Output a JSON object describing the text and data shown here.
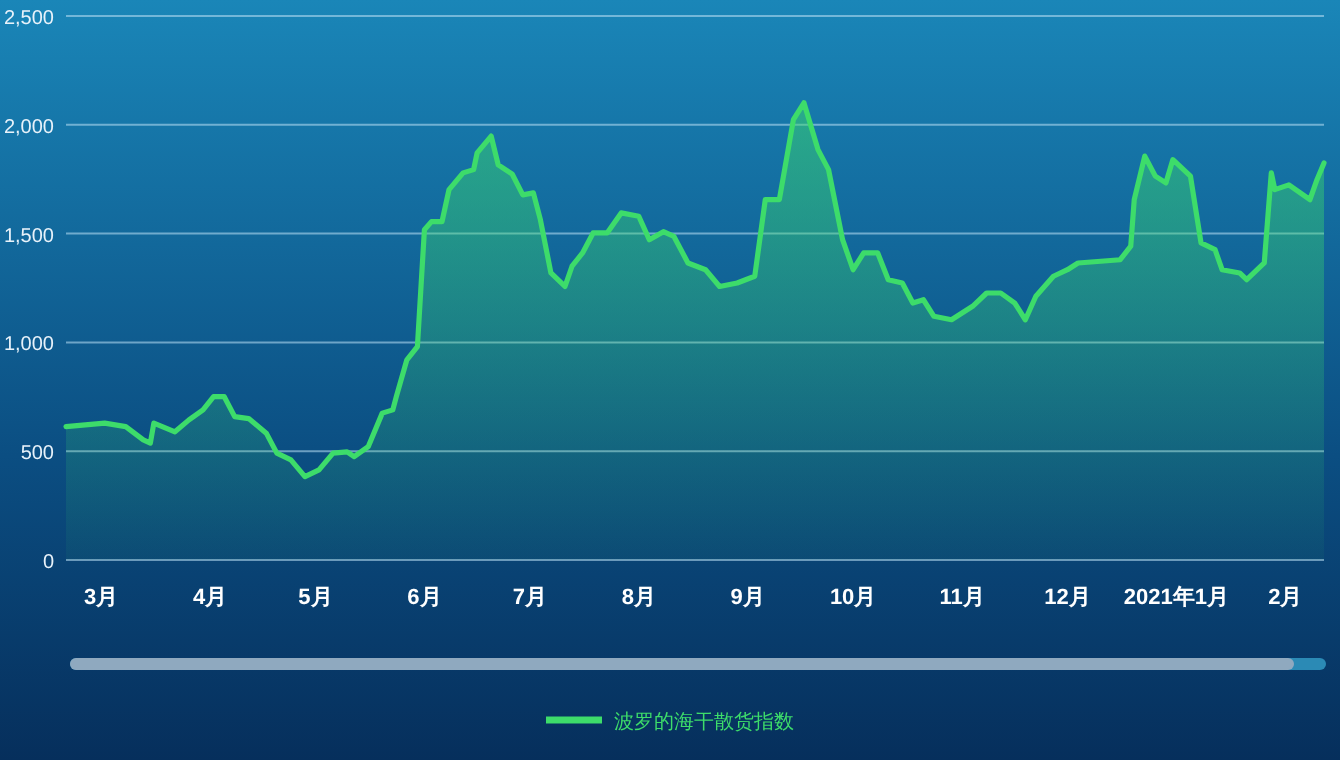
{
  "chart_data": {
    "type": "area",
    "ylim": [
      0,
      2500
    ],
    "yticks": [
      0,
      {
        "value": 500,
        "label": "500"
      },
      {
        "value": 1000,
        "label": "1,000"
      },
      {
        "value": 1500,
        "label": "1,500"
      },
      {
        "value": 2000,
        "label": "2,000"
      },
      {
        "value": 2500,
        "label": "2,500"
      }
    ],
    "xlim": [
      "2020-02-20",
      "2021-02-12"
    ],
    "xticks": [
      {
        "value": "2020-03-01",
        "label": "3月"
      },
      {
        "value": "2020-04-01",
        "label": "4月"
      },
      {
        "value": "2020-05-01",
        "label": "5月"
      },
      {
        "value": "2020-06-01",
        "label": "6月"
      },
      {
        "value": "2020-07-01",
        "label": "7月"
      },
      {
        "value": "2020-08-01",
        "label": "8月"
      },
      {
        "value": "2020-09-01",
        "label": "9月"
      },
      {
        "value": "2020-10-01",
        "label": "10月"
      },
      {
        "value": "2020-11-01",
        "label": "11月"
      },
      {
        "value": "2020-12-01",
        "label": "12月"
      },
      {
        "value": "2021-01-01",
        "label": "2021年1月"
      },
      {
        "value": "2021-02-01",
        "label": "2月"
      }
    ],
    "grid": "y",
    "legend": "bottom",
    "marker": "none",
    "line_style": "solid",
    "series": [
      {
        "name": "波罗的海干散货指数",
        "color": "#3ddc6a",
        "x": [
          "2020-02-20",
          "2020-03-02",
          "2020-03-08",
          "2020-03-13",
          "2020-03-15",
          "2020-03-16",
          "2020-03-22",
          "2020-03-26",
          "2020-03-30",
          "2020-04-02",
          "2020-04-05",
          "2020-04-08",
          "2020-04-12",
          "2020-04-17",
          "2020-04-20",
          "2020-04-24",
          "2020-04-28",
          "2020-05-02",
          "2020-05-06",
          "2020-05-10",
          "2020-05-12",
          "2020-05-16",
          "2020-05-20",
          "2020-05-23",
          "2020-05-24",
          "2020-05-27",
          "2020-05-30",
          "2020-06-01",
          "2020-06-03",
          "2020-06-06",
          "2020-06-08",
          "2020-06-12",
          "2020-06-15",
          "2020-06-16",
          "2020-06-20",
          "2020-06-22",
          "2020-06-26",
          "2020-06-29",
          "2020-07-02",
          "2020-07-04",
          "2020-07-07",
          "2020-07-11",
          "2020-07-13",
          "2020-07-16",
          "2020-07-19",
          "2020-07-23",
          "2020-07-27",
          "2020-08-01",
          "2020-08-04",
          "2020-08-08",
          "2020-08-11",
          "2020-08-15",
          "2020-08-20",
          "2020-08-24",
          "2020-08-29",
          "2020-09-03",
          "2020-09-06",
          "2020-09-10",
          "2020-09-14",
          "2020-09-17",
          "2020-09-21",
          "2020-09-24",
          "2020-09-28",
          "2020-10-01",
          "2020-10-04",
          "2020-10-08",
          "2020-10-11",
          "2020-10-15",
          "2020-10-18",
          "2020-10-21",
          "2020-10-24",
          "2020-10-29",
          "2020-11-04",
          "2020-11-08",
          "2020-11-12",
          "2020-11-16",
          "2020-11-19",
          "2020-11-22",
          "2020-11-27",
          "2020-12-01",
          "2020-12-04",
          "2020-12-16",
          "2020-12-19",
          "2020-12-20",
          "2020-12-23",
          "2020-12-26",
          "2020-12-29",
          "2020-12-31",
          "2021-01-05",
          "2021-01-08",
          "2021-01-12",
          "2021-01-14",
          "2021-01-19",
          "2021-01-21",
          "2021-01-26",
          "2021-01-28",
          "2021-01-29",
          "2021-02-02",
          "2021-02-08",
          "2021-02-10",
          "2021-02-12"
        ],
        "values": [
          613,
          629,
          613,
          552,
          537,
          629,
          589,
          644,
          690,
          751,
          751,
          659,
          650,
          583,
          491,
          460,
          383,
          414,
          491,
          497,
          475,
          521,
          675,
          690,
          751,
          920,
          981,
          1518,
          1555,
          1555,
          1702,
          1779,
          1794,
          1871,
          1948,
          1816,
          1773,
          1678,
          1687,
          1564,
          1319,
          1257,
          1350,
          1411,
          1503,
          1503,
          1595,
          1580,
          1472,
          1509,
          1487,
          1365,
          1334,
          1257,
          1273,
          1304,
          1656,
          1656,
          2024,
          2101,
          1886,
          1794,
          1472,
          1334,
          1411,
          1411,
          1288,
          1273,
          1181,
          1196,
          1120,
          1104,
          1166,
          1227,
          1227,
          1181,
          1104,
          1212,
          1304,
          1334,
          1365,
          1380,
          1442,
          1656,
          1856,
          1764,
          1733,
          1840,
          1764,
          1457,
          1426,
          1334,
          1319,
          1288,
          1365,
          1779,
          1702,
          1724,
          1656,
          1748,
          1825
        ]
      }
    ]
  }
}
